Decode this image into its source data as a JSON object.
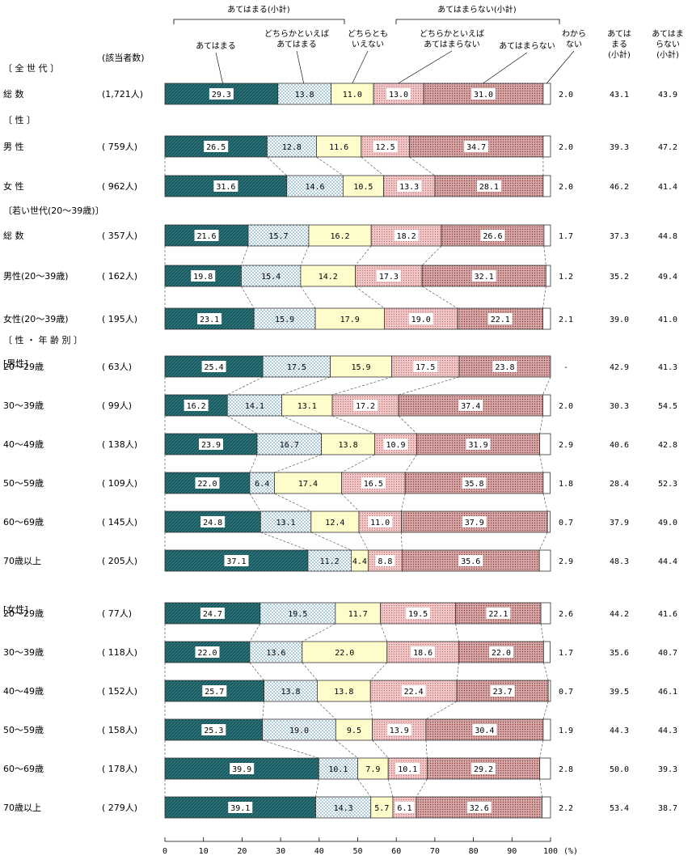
{
  "chart_data": {
    "type": "stacked-bar-horizontal",
    "title": "",
    "x_unit": "(%)",
    "xlim": [
      0,
      100
    ],
    "x_ticks": [
      0,
      10,
      20,
      30,
      40,
      50,
      60,
      70,
      80,
      90,
      100
    ],
    "n_header": "(該当者数)",
    "group_headers": {
      "agree_subtotal": "あてはまる(小計)",
      "disagree_subtotal": "あてはまらない(小計)"
    },
    "categories": [
      "あてはまる",
      "どちらかといえばあてはまる",
      "どちらともいえない",
      "どちらかといえばあてはまらない",
      "あてはまらない",
      "わからない"
    ],
    "category_labels": [
      [
        "あてはまる"
      ],
      [
        "どちらかといえば",
        "あてはまる"
      ],
      [
        "どちらとも",
        "いえない"
      ],
      [
        "どちらかといえば",
        "あてはまらない"
      ],
      [
        "あてはまらない"
      ],
      [
        "わから",
        "ない"
      ]
    ],
    "subtotal_headers": [
      [
        "あては",
        "まる",
        "(小計)"
      ],
      [
        "あてはま",
        "らない",
        "(小計)"
      ]
    ],
    "colors": [
      "#2a7379",
      "#c9e0ee",
      "#fffccc",
      "#e9b6b6",
      "#c49a9a",
      "#ffffff"
    ],
    "sections": [
      {
        "label": "〔 全 世 代 〕",
        "row_start": 0
      },
      {
        "label": "〔 性 〕",
        "row_start": 1
      },
      {
        "label": "〔若い世代(20〜39歳)〕",
        "row_start": 3
      },
      {
        "label": "〔 性 ・ 年 齢 別 〕",
        "row_start": 6
      }
    ],
    "group_tags": [
      {
        "label": "[男性]",
        "row": 6
      },
      {
        "label": "[女性]",
        "row": 12
      }
    ],
    "rows": [
      {
        "label": "総 数",
        "n": "(1,721人)",
        "values": [
          29.3,
          13.8,
          11.0,
          13.0,
          31.0,
          2.0
        ],
        "subtotal_agree": "43.1",
        "subtotal_disagree": "43.9"
      },
      {
        "label": "男 性",
        "n": "( 759人)",
        "values": [
          26.5,
          12.8,
          11.6,
          12.5,
          34.7,
          2.0
        ],
        "subtotal_agree": "39.3",
        "subtotal_disagree": "47.2"
      },
      {
        "label": "女 性",
        "n": "( 962人)",
        "values": [
          31.6,
          14.6,
          10.5,
          13.3,
          28.1,
          2.0
        ],
        "subtotal_agree": "46.2",
        "subtotal_disagree": "41.4"
      },
      {
        "label": "総 数",
        "n": "( 357人)",
        "values": [
          21.6,
          15.7,
          16.2,
          18.2,
          26.6,
          1.7
        ],
        "subtotal_agree": "37.3",
        "subtotal_disagree": "44.8"
      },
      {
        "label": "男性(20〜39歳)",
        "n": "( 162人)",
        "values": [
          19.8,
          15.4,
          14.2,
          17.3,
          32.1,
          1.2
        ],
        "subtotal_agree": "35.2",
        "subtotal_disagree": "49.4"
      },
      {
        "label": "女性(20〜39歳)",
        "n": "( 195人)",
        "values": [
          23.1,
          15.9,
          17.9,
          19.0,
          22.1,
          2.1
        ],
        "subtotal_agree": "39.0",
        "subtotal_disagree": "41.0"
      },
      {
        "label": "20〜29歳",
        "n": "( 63人)",
        "values": [
          25.4,
          17.5,
          15.9,
          17.5,
          23.8,
          0
        ],
        "dk_label": "-",
        "subtotal_agree": "42.9",
        "subtotal_disagree": "41.3"
      },
      {
        "label": "30〜39歳",
        "n": "( 99人)",
        "values": [
          16.2,
          14.1,
          13.1,
          17.2,
          37.4,
          2.0
        ],
        "subtotal_agree": "30.3",
        "subtotal_disagree": "54.5"
      },
      {
        "label": "40〜49歳",
        "n": "( 138人)",
        "values": [
          23.9,
          16.7,
          13.8,
          10.9,
          31.9,
          2.9
        ],
        "subtotal_agree": "40.6",
        "subtotal_disagree": "42.8"
      },
      {
        "label": "50〜59歳",
        "n": "( 109人)",
        "values": [
          22.0,
          6.4,
          17.4,
          16.5,
          35.8,
          1.8
        ],
        "subtotal_agree": "28.4",
        "subtotal_disagree": "52.3"
      },
      {
        "label": "60〜69歳",
        "n": "( 145人)",
        "values": [
          24.8,
          13.1,
          12.4,
          11.0,
          37.9,
          0.7
        ],
        "subtotal_agree": "37.9",
        "subtotal_disagree": "49.0"
      },
      {
        "label": "70歳以上",
        "n": "( 205人)",
        "values": [
          37.1,
          11.2,
          4.4,
          8.8,
          35.6,
          2.9
        ],
        "subtotal_agree": "48.3",
        "subtotal_disagree": "44.4"
      },
      {
        "label": "20〜29歳",
        "n": "( 77人)",
        "values": [
          24.7,
          19.5,
          11.7,
          19.5,
          22.1,
          2.6
        ],
        "subtotal_agree": "44.2",
        "subtotal_disagree": "41.6"
      },
      {
        "label": "30〜39歳",
        "n": "( 118人)",
        "values": [
          22.0,
          13.6,
          22.0,
          18.6,
          22.0,
          1.7
        ],
        "subtotal_agree": "35.6",
        "subtotal_disagree": "40.7"
      },
      {
        "label": "40〜49歳",
        "n": "( 152人)",
        "values": [
          25.7,
          13.8,
          13.8,
          22.4,
          23.7,
          0.7
        ],
        "subtotal_agree": "39.5",
        "subtotal_disagree": "46.1"
      },
      {
        "label": "50〜59歳",
        "n": "( 158人)",
        "values": [
          25.3,
          19.0,
          9.5,
          13.9,
          30.4,
          1.9
        ],
        "subtotal_agree": "44.3",
        "subtotal_disagree": "44.3"
      },
      {
        "label": "60〜69歳",
        "n": "( 178人)",
        "values": [
          39.9,
          10.1,
          7.9,
          10.1,
          29.2,
          2.8
        ],
        "subtotal_agree": "50.0",
        "subtotal_disagree": "39.3"
      },
      {
        "label": "70歳以上",
        "n": "( 279人)",
        "values": [
          39.1,
          14.3,
          5.7,
          6.1,
          32.6,
          2.2
        ],
        "subtotal_agree": "53.4",
        "subtotal_disagree": "38.7"
      }
    ]
  }
}
